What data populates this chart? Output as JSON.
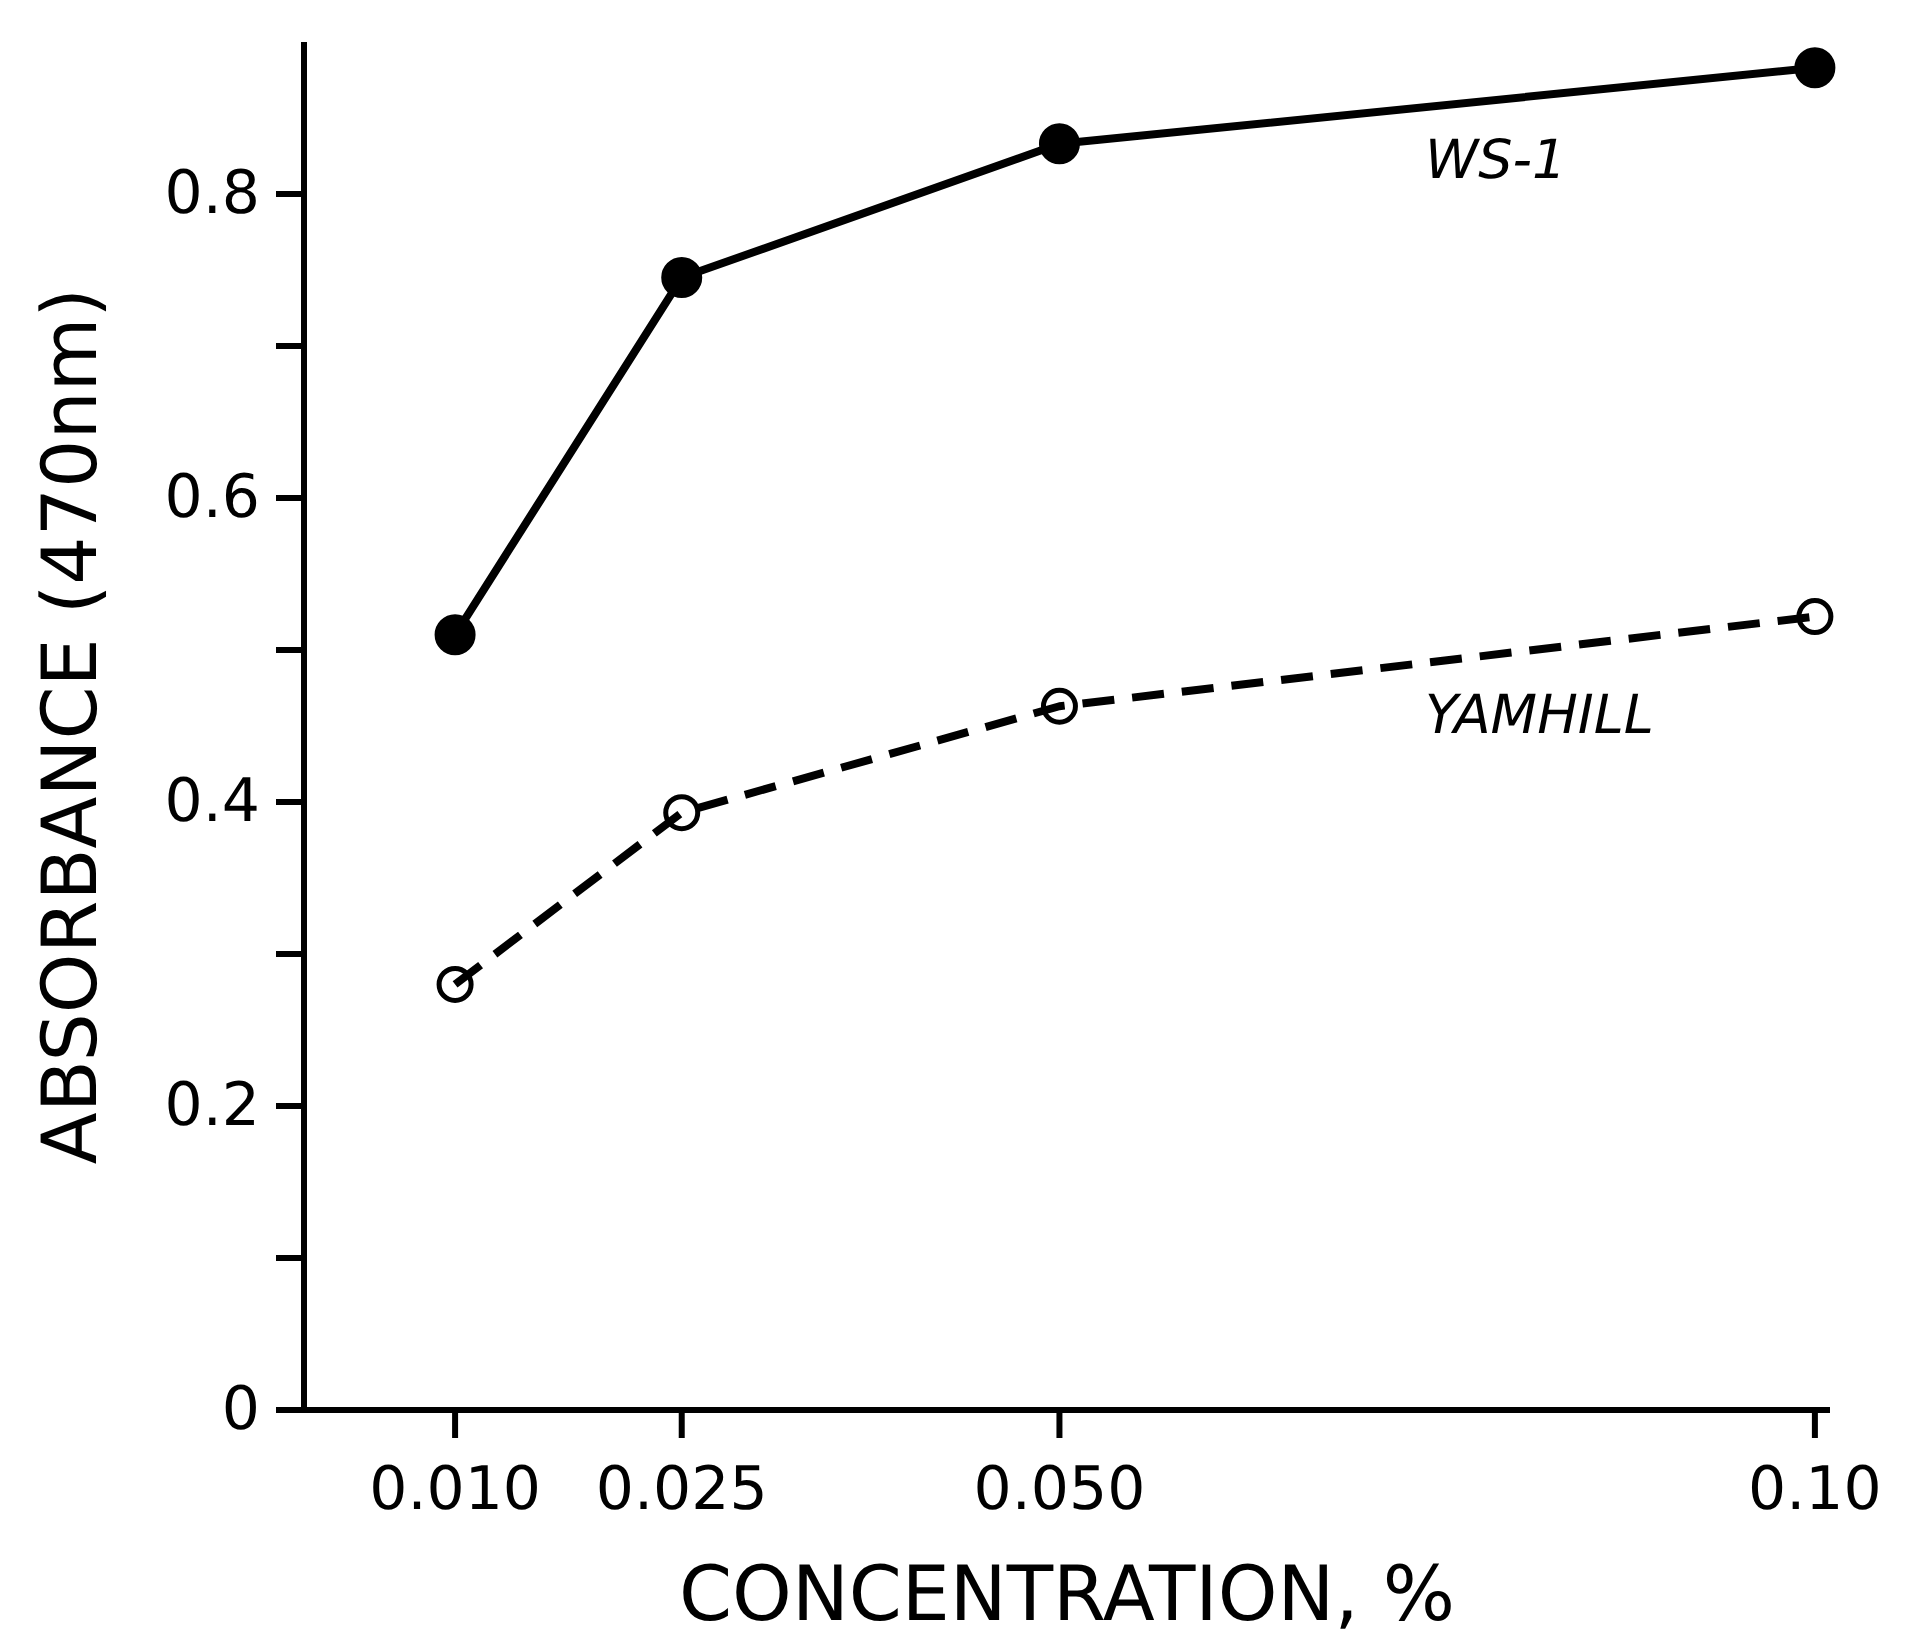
{
  "chart_data": {
    "type": "line",
    "xlabel": "CONCENTRATION, %",
    "ylabel": "ABSORBANCE (470nm)",
    "x": [
      0.01,
      0.025,
      0.05,
      0.1
    ],
    "xlim": [
      0,
      0.101
    ],
    "xticks": [
      {
        "value": 0.01,
        "label": "0.010"
      },
      {
        "value": 0.025,
        "label": "0.025"
      },
      {
        "value": 0.05,
        "label": "0.050"
      },
      {
        "value": 0.1,
        "label": "0.10"
      }
    ],
    "ylim": [
      0,
      0.9
    ],
    "yticks": [
      0,
      {
        "value": 0.1,
        "label": null
      },
      {
        "value": 0.2,
        "label": "0.2"
      },
      {
        "value": 0.3,
        "label": null
      },
      {
        "value": 0.4,
        "label": "0.4"
      },
      {
        "value": 0.5,
        "label": null
      },
      {
        "value": 0.6,
        "label": "0.6"
      },
      {
        "value": 0.7,
        "label": null
      },
      {
        "value": 0.8,
        "label": "0.8"
      }
    ],
    "grid": false,
    "marker": "circle",
    "series": [
      {
        "name": "WS-1",
        "color": "#000000",
        "line_style": "solid",
        "values": [
          0.51,
          0.745,
          0.833,
          0.883
        ]
      },
      {
        "name": "YAMHILL",
        "color": "#000000",
        "line_style": "dashed",
        "values": [
          0.28,
          0.393,
          0.463,
          0.522
        ]
      }
    ]
  }
}
